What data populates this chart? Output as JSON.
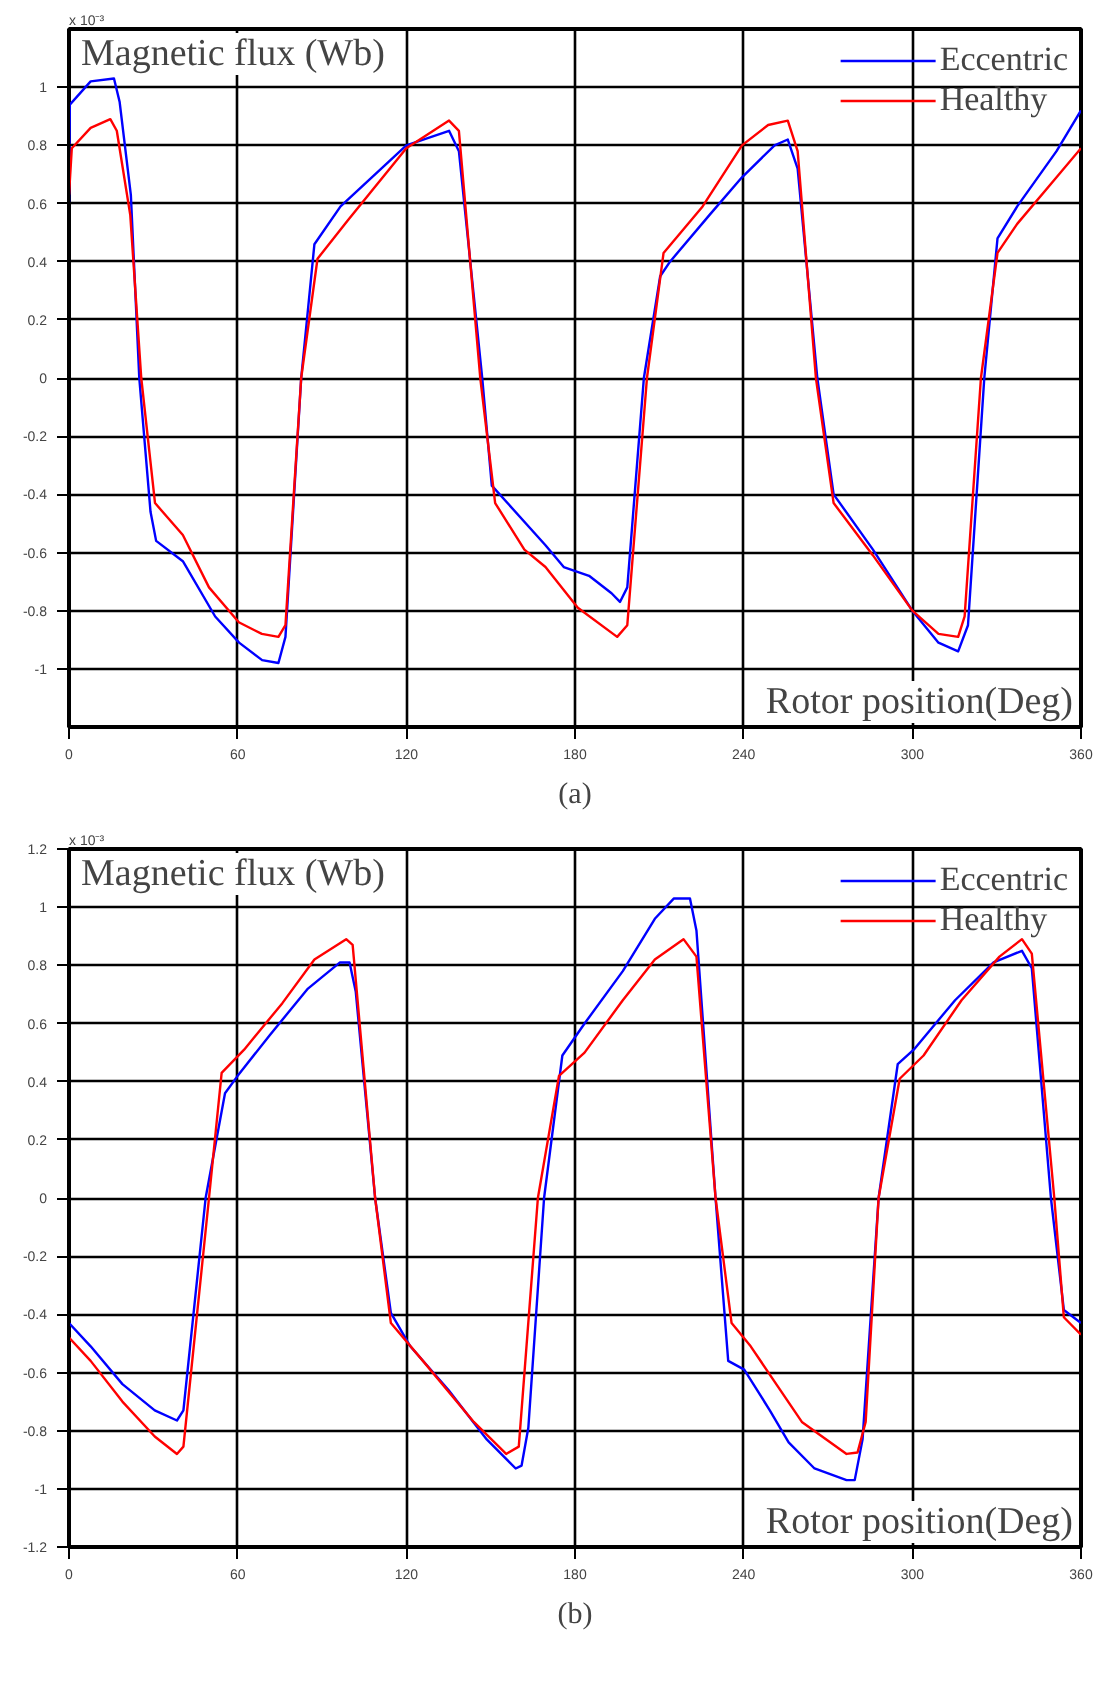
{
  "chart_data": [
    {
      "type": "line",
      "ylabel": "Magnetic flux (Wb)",
      "xlabel": "Rotor position(Deg)",
      "annotations": [
        "x 10⁻³",
        "(a)"
      ],
      "xlim": [
        0,
        360
      ],
      "ylim": [
        -1.2,
        1.2
      ],
      "xticks": [
        0,
        60,
        120,
        180,
        240,
        300,
        360
      ],
      "yticks": [
        -1,
        -0.8,
        -0.6,
        -0.4,
        -0.2,
        0,
        0.2,
        0.4,
        0.6,
        0.8,
        1
      ],
      "grid": true,
      "legend": "top right",
      "series": [
        {
          "name": "Eccentric",
          "color": "#0000ff",
          "x": [
            0,
            0.3,
            7.7,
            16,
            18,
            22,
            25,
            29,
            31,
            40.5,
            52,
            60.5,
            68.7,
            74.5,
            77,
            82.6,
            87.3,
            96.6,
            120,
            135.2,
            138.7,
            147,
            150.4,
            169.5,
            176,
            185,
            193,
            196,
            198.6,
            204.5,
            210.3,
            213.8,
            227.8,
            239.4,
            251,
            255.7,
            259.2,
            266.2,
            272,
            286,
            300,
            309.3,
            316.3,
            319.8,
            325.6,
            330.3,
            337.3,
            351.3,
            360
          ],
          "values": [
            0.6,
            0.94,
            1.02,
            1.03,
            0.95,
            0.63,
            0,
            -0.46,
            -0.56,
            -0.63,
            -0.82,
            -0.91,
            -0.97,
            -0.98,
            -0.89,
            0,
            0.46,
            0.59,
            0.8,
            0.85,
            0.78,
            0,
            -0.37,
            -0.575,
            -0.65,
            -0.68,
            -0.74,
            -0.77,
            -0.72,
            0,
            0.35,
            0.4,
            0.56,
            0.69,
            0.8,
            0.82,
            0.72,
            0,
            -0.4,
            -0.59,
            -0.8,
            -0.91,
            -0.94,
            -0.85,
            0,
            0.48,
            0.59,
            0.78,
            0.92
          ]
        },
        {
          "name": "Healthy",
          "color": "#ff0000",
          "x": [
            0,
            1,
            7.7,
            14.7,
            17,
            21.8,
            25.7,
            30.6,
            40.5,
            49.8,
            60.4,
            68.6,
            74.5,
            77,
            82.6,
            88.4,
            99,
            120,
            135.2,
            138.7,
            146.3,
            151.6,
            162,
            169.5,
            181,
            195,
            198.6,
            205.6,
            211.5,
            225.4,
            239.4,
            248.7,
            255.7,
            259.2,
            265.7,
            272,
            286,
            300,
            309.3,
            316.3,
            318.6,
            324.4,
            330.3,
            337.3,
            351.3,
            360
          ],
          "values": [
            0.63,
            0.79,
            0.86,
            0.89,
            0.85,
            0.56,
            0,
            -0.43,
            -0.54,
            -0.72,
            -0.84,
            -0.88,
            -0.89,
            -0.85,
            0,
            0.41,
            0.54,
            0.79,
            0.885,
            0.85,
            0,
            -0.43,
            -0.59,
            -0.65,
            -0.79,
            -0.89,
            -0.85,
            0,
            0.43,
            0.59,
            0.8,
            0.87,
            0.885,
            0.78,
            0,
            -0.43,
            -0.61,
            -0.8,
            -0.88,
            -0.89,
            -0.82,
            0,
            0.43,
            0.53,
            0.69,
            0.79
          ]
        }
      ]
    },
    {
      "type": "line",
      "ylabel": "Magnetic flux (Wb)",
      "xlabel": "Rotor position(Deg)",
      "annotations": [
        "x 10⁻³",
        "(b)"
      ],
      "xlim": [
        0,
        360
      ],
      "ylim": [
        -1.2,
        1.2
      ],
      "xticks": [
        0,
        60,
        120,
        180,
        240,
        300,
        360
      ],
      "yticks": [
        -1.2,
        -1,
        -0.8,
        -0.6,
        -0.4,
        -0.2,
        0,
        0.2,
        0.4,
        0.6,
        0.8,
        1,
        1.2
      ],
      "grid": true,
      "legend": "top right",
      "series": [
        {
          "name": "Eccentric",
          "color": "#0000ff",
          "x": [
            0,
            7.7,
            19,
            30.5,
            38.4,
            40.7,
            48.6,
            55.5,
            60,
            71.4,
            85,
            96.4,
            99.8,
            102,
            108.9,
            114.5,
            121.4,
            135,
            148.6,
            158.9,
            161,
            163.4,
            169,
            175.5,
            183.4,
            197,
            208.4,
            215.2,
            220.9,
            223.2,
            230,
            234.5,
            240.2,
            249.3,
            256,
            265.2,
            276.6,
            279.5,
            282.3,
            288,
            294.8,
            300.5,
            315.2,
            328.9,
            339,
            342.5,
            349.3,
            353.9,
            360
          ],
          "values": [
            -0.43,
            -0.51,
            -0.64,
            -0.73,
            -0.765,
            -0.73,
            0,
            0.36,
            0.42,
            0.56,
            0.72,
            0.81,
            0.81,
            0.71,
            0,
            -0.395,
            -0.51,
            -0.66,
            -0.83,
            -0.93,
            -0.92,
            -0.79,
            0,
            0.49,
            0.6,
            0.78,
            0.96,
            1.03,
            1.03,
            0.92,
            0,
            -0.56,
            -0.59,
            -0.73,
            -0.84,
            -0.93,
            -0.97,
            -0.97,
            -0.83,
            0,
            0.46,
            0.51,
            0.68,
            0.81,
            0.85,
            0.79,
            0,
            -0.385,
            -0.43
          ]
        },
        {
          "name": "Healthy",
          "color": "#ff0000",
          "x": [
            0,
            7.7,
            19,
            30.5,
            38.4,
            40.7,
            49.8,
            54.3,
            62.3,
            75.9,
            87.3,
            98.6,
            100.9,
            108.9,
            114.5,
            125.9,
            144,
            155.5,
            160,
            166.8,
            174.3,
            183.4,
            197,
            208.4,
            218.6,
            223.2,
            230,
            235.7,
            242.5,
            260.7,
            276.6,
            280.5,
            283.4,
            288,
            295.5,
            304,
            317.5,
            331,
            339,
            342.5,
            350.5,
            353.9,
            360
          ],
          "values": [
            -0.48,
            -0.56,
            -0.7,
            -0.82,
            -0.88,
            -0.855,
            0,
            0.43,
            0.51,
            0.67,
            0.82,
            0.89,
            0.87,
            0,
            -0.43,
            -0.56,
            -0.77,
            -0.88,
            -0.855,
            0,
            0.42,
            0.5,
            0.68,
            0.82,
            0.89,
            0.83,
            0,
            -0.43,
            -0.51,
            -0.77,
            -0.88,
            -0.875,
            -0.77,
            0,
            0.41,
            0.49,
            0.68,
            0.83,
            0.89,
            0.84,
            0,
            -0.41,
            -0.47
          ]
        }
      ]
    }
  ]
}
